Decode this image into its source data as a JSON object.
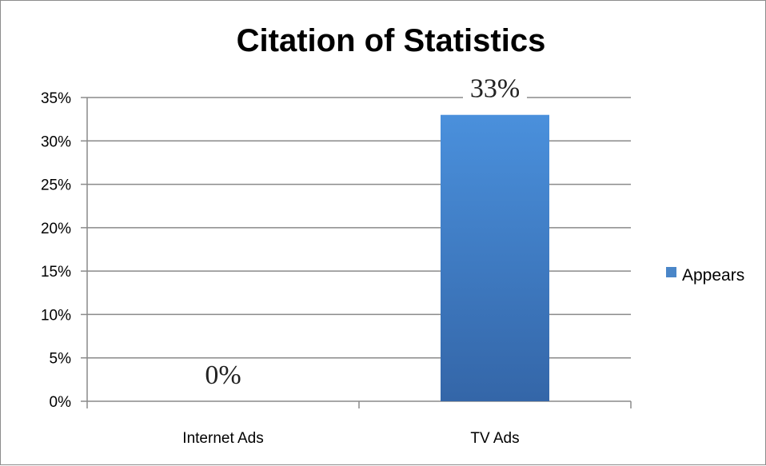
{
  "chart_data": {
    "type": "bar",
    "title": "Citation of Statistics",
    "categories": [
      "Internet Ads",
      "TV Ads"
    ],
    "series": [
      {
        "name": "Appears",
        "values": [
          0,
          33
        ],
        "color": "#4a86c8"
      }
    ],
    "data_labels": [
      "0%",
      "33%"
    ],
    "ylim": [
      0,
      35
    ],
    "yticks": [
      0,
      5,
      10,
      15,
      20,
      25,
      30,
      35
    ],
    "ytick_labels": [
      "0%",
      "5%",
      "10%",
      "15%",
      "20%",
      "25%",
      "30%",
      "35%"
    ],
    "grid": true,
    "legend_position": "right"
  }
}
